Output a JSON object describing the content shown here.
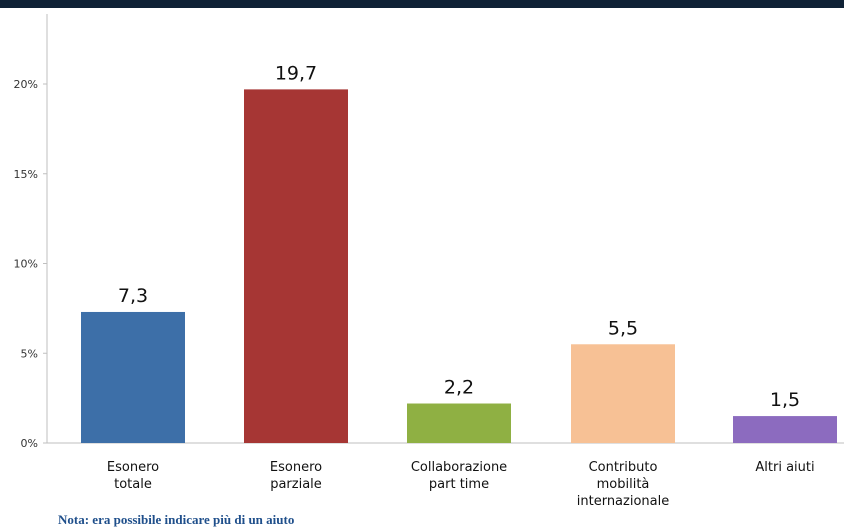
{
  "chart_data": {
    "type": "bar",
    "categories": [
      [
        "Esonero",
        "totale"
      ],
      [
        "Esonero",
        "parziale"
      ],
      [
        "Collaborazione",
        "part time"
      ],
      [
        "Contributo",
        "mobilità",
        "internazionale"
      ],
      [
        "Altri aiuti"
      ]
    ],
    "values": [
      7.3,
      19.7,
      2.2,
      5.5,
      1.5
    ],
    "value_labels": [
      "7,3",
      "19,7",
      "2,2",
      "5,5",
      "1,5"
    ],
    "colors": [
      "#3d6fa8",
      "#a63634",
      "#8fb043",
      "#f7c195",
      "#8c6bbf"
    ],
    "ylim": [
      0,
      20
    ],
    "yticks": [
      0,
      5,
      10,
      15,
      20
    ],
    "ytick_labels": [
      "0%",
      "5%",
      "10%",
      "15%",
      "20%"
    ],
    "title": "",
    "xlabel": "",
    "ylabel": "",
    "grid": false,
    "legend": false
  },
  "note": "Nota: era possibile indicare più di un aiuto"
}
